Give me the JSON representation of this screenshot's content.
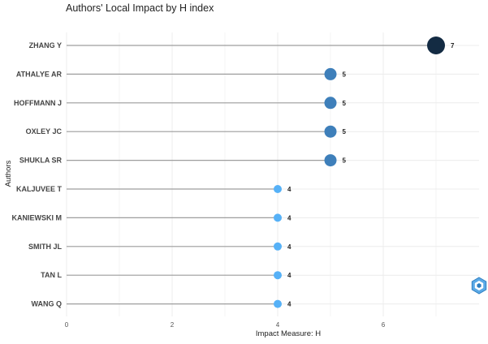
{
  "chart_data": {
    "type": "lollipop",
    "title": "Authors' Local Impact by H index",
    "xlabel": "Impact Measure: H",
    "ylabel": "Authors",
    "xlim": [
      0,
      8
    ],
    "xticks": [
      0,
      2,
      4,
      6
    ],
    "grid": true,
    "categories": [
      "ZHANG Y",
      "ATHALYE AR",
      "HOFFMANN J",
      "OXLEY JC",
      "SHUKLA SR",
      "KALJUVEE T",
      "KANIEWSKI M",
      "SMITH JL",
      "TAN L",
      "WANG Q"
    ],
    "values": [
      7,
      5,
      5,
      5,
      5,
      4,
      4,
      4,
      4,
      4
    ],
    "value_labels": [
      "7",
      "5",
      "5",
      "5",
      "5",
      "4",
      "4",
      "4",
      "4",
      "4"
    ],
    "colors": {
      "high": "#132B43",
      "mid": "#3E7FBA",
      "low": "#56B1F7",
      "stem": "#9e9e9e",
      "grid": "#ececec"
    }
  },
  "watermark": {
    "icon": "bibliometrix-logo-icon"
  }
}
